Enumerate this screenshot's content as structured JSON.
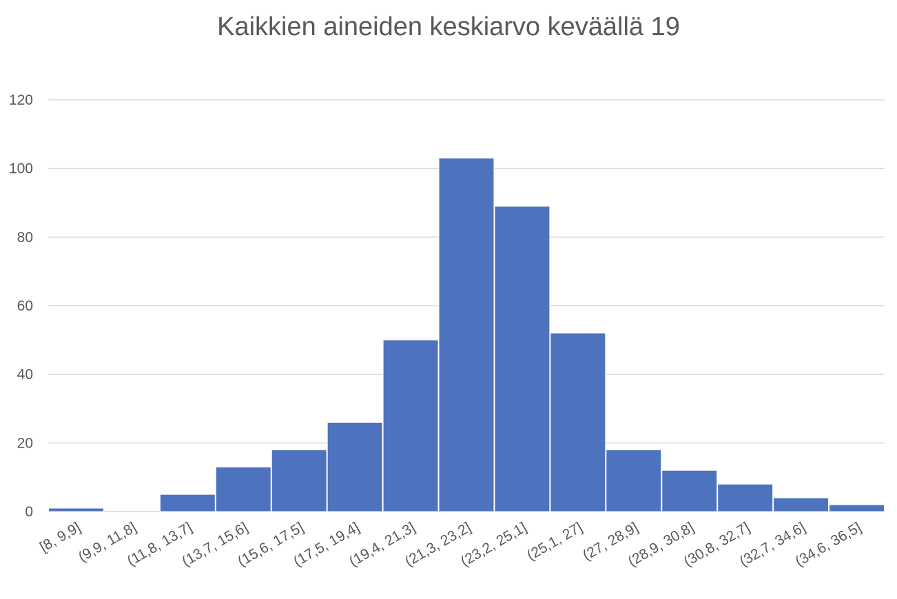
{
  "chart_data": {
    "type": "bar",
    "title": "Kaikkien aineiden keskiarvo keväällä 19",
    "xlabel": "",
    "ylabel": "",
    "categories": [
      "[8, 9,9]",
      "(9,9, 11,8]",
      "(11,8, 13,7]",
      "(13,7, 15,6]",
      "(15,6, 17,5]",
      "(17,5, 19,4]",
      "(19,4, 21,3]",
      "(21,3, 23,2]",
      "(23,2, 25,1]",
      "(25,1, 27]",
      "(27, 28,9]",
      "(28,9, 30,8]",
      "(30,8, 32,7]",
      "(32,7, 34,6]",
      "(34,6, 36,5]"
    ],
    "values": [
      1,
      0,
      5,
      13,
      18,
      26,
      50,
      103,
      89,
      52,
      18,
      12,
      8,
      4,
      2
    ],
    "ylim": [
      0,
      120
    ],
    "yticks": [
      0,
      20,
      40,
      60,
      80,
      100,
      120
    ],
    "grid": true,
    "legend": "none",
    "bar_color": "#4e73be",
    "grid_color": "#d9d9d9",
    "text_color": "#595959"
  }
}
